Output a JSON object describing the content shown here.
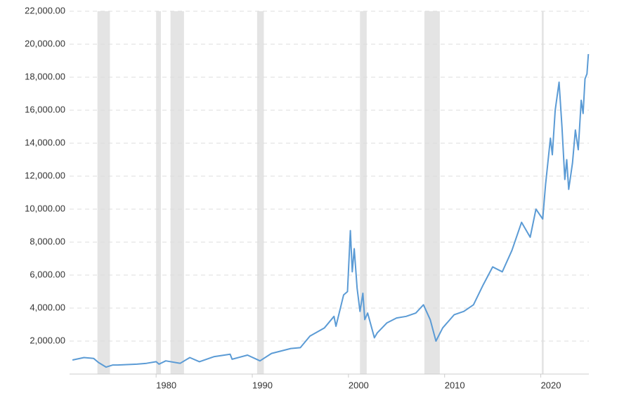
{
  "chart_data": {
    "type": "line",
    "color": "#5b9bd5",
    "grid": true,
    "xlim": [
      1971,
      2025
    ],
    "xticks": [
      1980,
      1990,
      2000,
      2010,
      2020
    ],
    "ylim": [
      0,
      22000
    ],
    "yticks": [
      {
        "value": 2000,
        "label": "2,000.00"
      },
      {
        "value": 4000,
        "label": "4,000.00"
      },
      {
        "value": 6000,
        "label": "6,000.00"
      },
      {
        "value": 8000,
        "label": "8,000.00"
      },
      {
        "value": 10000,
        "label": "10,000.00"
      },
      {
        "value": 12000,
        "label": "12,000.00"
      },
      {
        "value": 14000,
        "label": "14,000.00"
      },
      {
        "value": 16000,
        "label": "16,000.00"
      },
      {
        "value": 18000,
        "label": "18,000.00"
      },
      {
        "value": 20000,
        "label": "20,000.00"
      },
      {
        "value": 22000,
        "label": "22,000.00"
      }
    ],
    "recessions": [
      [
        1973.9,
        1975.2
      ],
      [
        1980.0,
        1980.5
      ],
      [
        1981.5,
        1982.9
      ],
      [
        1990.5,
        1991.2
      ],
      [
        2001.2,
        2001.9
      ],
      [
        2007.9,
        2009.5
      ],
      [
        2020.1,
        2020.3
      ]
    ],
    "x": [
      1971.3,
      1972.5,
      1973.5,
      1974.0,
      1974.8,
      1975.5,
      1976.0,
      1978.0,
      1979.0,
      1980.0,
      1980.3,
      1981.0,
      1982.5,
      1983.5,
      1984.5,
      1986.0,
      1987.7,
      1987.9,
      1989.5,
      1990.8,
      1992.0,
      1994.0,
      1995.0,
      1996.0,
      1997.5,
      1998.5,
      1998.7,
      1999.5,
      1999.9,
      2000.2,
      2000.4,
      2000.6,
      2000.9,
      2001.2,
      2001.5,
      2001.7,
      2002.0,
      2002.7,
      2003.0,
      2004.0,
      2005.0,
      2006.0,
      2007.0,
      2007.8,
      2008.5,
      2009.1,
      2009.8,
      2011.0,
      2012.0,
      2013.0,
      2014.0,
      2015.0,
      2016.0,
      2017.0,
      2018.0,
      2018.9,
      2019.5,
      2020.2,
      2020.5,
      2021.0,
      2021.2,
      2021.5,
      2021.9,
      2022.2,
      2022.5,
      2022.7,
      2022.9,
      2023.3,
      2023.6,
      2023.9,
      2024.2,
      2024.4,
      2024.6,
      2024.8,
      2024.95
    ],
    "values": [
      850,
      1000,
      950,
      700,
      420,
      550,
      550,
      600,
      650,
      750,
      600,
      800,
      650,
      1000,
      750,
      1050,
      1200,
      900,
      1150,
      800,
      1250,
      1550,
      1600,
      2300,
      2800,
      3500,
      2900,
      4800,
      5000,
      8700,
      6200,
      7600,
      5200,
      3800,
      4900,
      3300,
      3700,
      2200,
      2500,
      3100,
      3400,
      3500,
      3700,
      4200,
      3300,
      2000,
      2800,
      3600,
      3800,
      4200,
      5400,
      6500,
      6200,
      7500,
      9200,
      8300,
      10000,
      9400,
      11500,
      14300,
      13300,
      16000,
      17700,
      15000,
      11800,
      13000,
      11200,
      12800,
      14800,
      13600,
      16600,
      15800,
      17900,
      18200,
      19400
    ]
  }
}
